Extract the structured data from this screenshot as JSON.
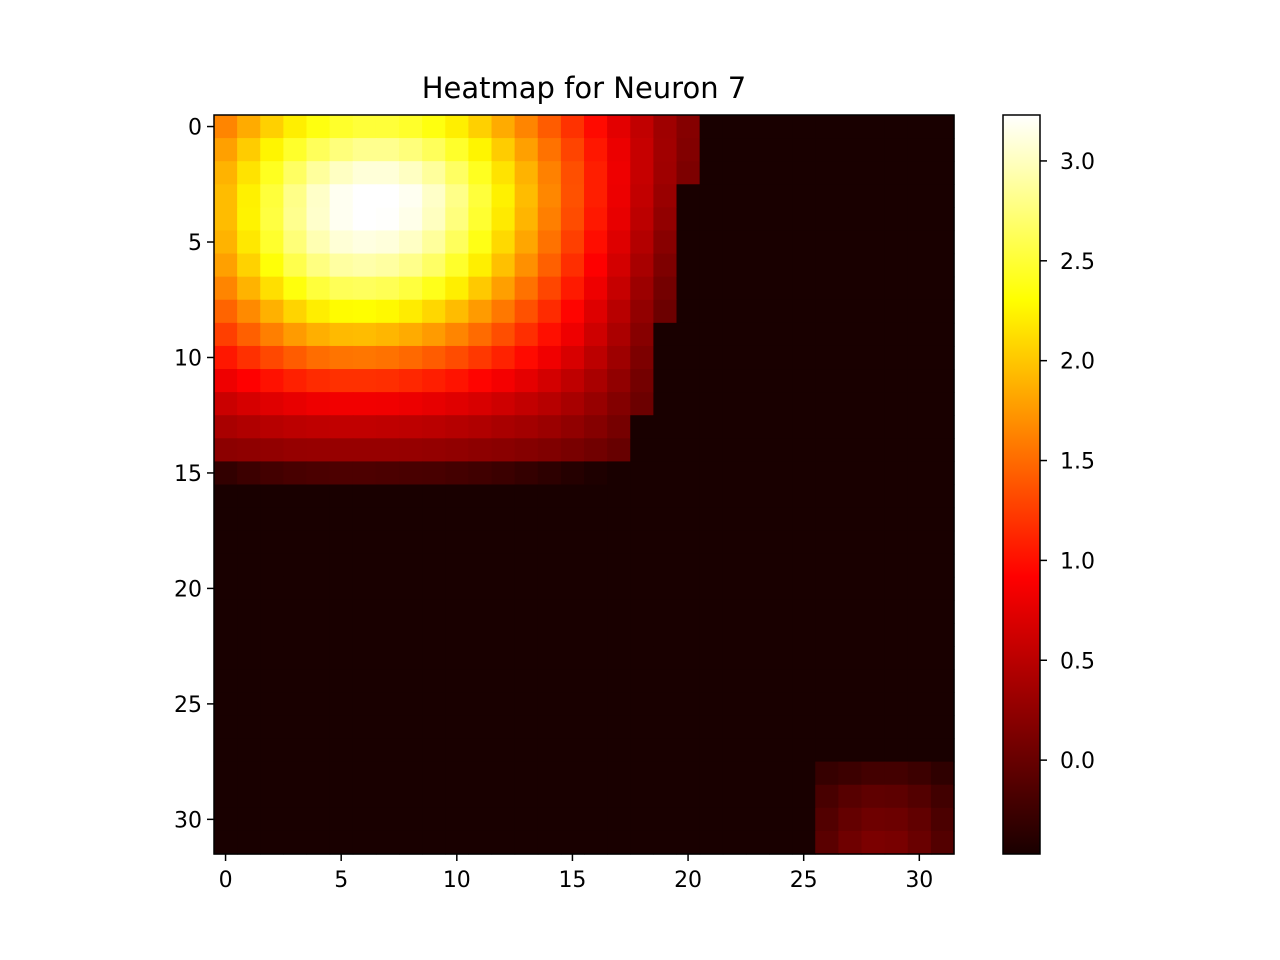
{
  "chart_data": {
    "type": "heatmap",
    "title": "Heatmap for Neuron 7",
    "xlabel": "",
    "ylabel": "",
    "rows": 32,
    "cols": 32,
    "x_ticks": [
      0,
      5,
      10,
      15,
      20,
      25,
      30
    ],
    "y_ticks": [
      0,
      5,
      10,
      15,
      20,
      25,
      30
    ],
    "y_axis_inverted": true,
    "grid": false,
    "colormap": "hot",
    "colorbar": {
      "vmin": -0.47,
      "vmax": 3.23,
      "ticks": [
        0.0,
        0.5,
        1.0,
        1.5,
        2.0,
        2.5,
        3.0
      ],
      "tick_labels": [
        "0.0",
        "0.5",
        "1.0",
        "1.5",
        "2.0",
        "2.5",
        "3.0"
      ],
      "placement": "right"
    },
    "values": [
      [
        1.64,
        1.85,
        2.05,
        2.22,
        2.36,
        2.46,
        2.51,
        2.51,
        2.46,
        2.36,
        2.22,
        2.05,
        1.85,
        1.64,
        1.42,
        1.19,
        0.97,
        0.75,
        0.54,
        0.34,
        0.18,
        -0.47,
        -0.47,
        -0.47,
        -0.47,
        -0.47,
        -0.47,
        -0.47,
        -0.47,
        -0.47,
        -0.47,
        -0.47
      ],
      [
        1.79,
        2.03,
        2.25,
        2.46,
        2.63,
        2.75,
        2.82,
        2.82,
        2.75,
        2.63,
        2.46,
        2.25,
        2.03,
        1.79,
        1.54,
        1.29,
        1.04,
        0.8,
        0.57,
        0.35,
        0.16,
        -0.47,
        -0.47,
        -0.47,
        -0.47,
        -0.47,
        -0.47,
        -0.47,
        -0.47,
        -0.47,
        -0.47,
        -0.47
      ],
      [
        1.89,
        2.15,
        2.42,
        2.66,
        2.87,
        3.01,
        3.09,
        3.09,
        3.01,
        2.87,
        2.66,
        2.42,
        2.15,
        1.89,
        1.62,
        1.35,
        1.08,
        0.82,
        0.57,
        0.34,
        0.13,
        -0.47,
        -0.47,
        -0.47,
        -0.47,
        -0.47,
        -0.47,
        -0.47,
        -0.47,
        -0.47,
        -0.47,
        -0.47
      ],
      [
        1.94,
        2.23,
        2.52,
        2.8,
        3.03,
        3.18,
        3.23,
        3.23,
        3.18,
        3.03,
        2.8,
        2.52,
        2.23,
        1.94,
        1.65,
        1.36,
        1.08,
        0.81,
        0.55,
        0.3,
        -0.47,
        -0.47,
        -0.47,
        -0.47,
        -0.47,
        -0.47,
        -0.47,
        -0.47,
        -0.47,
        -0.47,
        -0.47,
        -0.47
      ],
      [
        1.94,
        2.24,
        2.54,
        2.82,
        3.04,
        3.18,
        3.23,
        3.22,
        3.15,
        3.0,
        2.76,
        2.48,
        2.19,
        1.9,
        1.61,
        1.33,
        1.05,
        0.78,
        0.51,
        0.26,
        -0.47,
        -0.47,
        -0.47,
        -0.47,
        -0.47,
        -0.47,
        -0.47,
        -0.47,
        -0.47,
        -0.47,
        -0.47,
        -0.47
      ],
      [
        1.89,
        2.18,
        2.47,
        2.74,
        2.95,
        3.08,
        3.12,
        3.1,
        3.02,
        2.87,
        2.64,
        2.38,
        2.1,
        1.82,
        1.54,
        1.26,
        0.99,
        0.72,
        0.46,
        0.2,
        -0.47,
        -0.47,
        -0.47,
        -0.47,
        -0.47,
        -0.47,
        -0.47,
        -0.47,
        -0.47,
        -0.47,
        -0.47,
        -0.47
      ],
      [
        1.79,
        2.06,
        2.33,
        2.58,
        2.77,
        2.89,
        2.92,
        2.89,
        2.81,
        2.67,
        2.46,
        2.22,
        1.96,
        1.7,
        1.44,
        1.17,
        0.91,
        0.65,
        0.39,
        0.14,
        -0.47,
        -0.47,
        -0.47,
        -0.47,
        -0.47,
        -0.47,
        -0.47,
        -0.47,
        -0.47,
        -0.47,
        -0.47,
        -0.47
      ],
      [
        1.64,
        1.89,
        2.13,
        2.35,
        2.52,
        2.62,
        2.64,
        2.61,
        2.53,
        2.4,
        2.22,
        2.01,
        1.78,
        1.54,
        1.3,
        1.06,
        0.82,
        0.57,
        0.32,
        0.08,
        -0.47,
        -0.47,
        -0.47,
        -0.47,
        -0.47,
        -0.47,
        -0.47,
        -0.47,
        -0.47,
        -0.47,
        -0.47,
        -0.47
      ],
      [
        1.46,
        1.67,
        1.88,
        2.07,
        2.21,
        2.29,
        2.3,
        2.27,
        2.2,
        2.09,
        1.94,
        1.76,
        1.57,
        1.36,
        1.15,
        0.94,
        0.72,
        0.49,
        0.26,
        0.03,
        -0.47,
        -0.47,
        -0.47,
        -0.47,
        -0.47,
        -0.47,
        -0.47,
        -0.47,
        -0.47,
        -0.47,
        -0.47,
        -0.47
      ],
      [
        1.26,
        1.44,
        1.61,
        1.76,
        1.87,
        1.93,
        1.94,
        1.91,
        1.85,
        1.76,
        1.64,
        1.5,
        1.34,
        1.17,
        1.0,
        0.82,
        0.62,
        0.41,
        0.19,
        -0.47,
        -0.47,
        -0.47,
        -0.47,
        -0.47,
        -0.47,
        -0.47,
        -0.47,
        -0.47,
        -0.47,
        -0.47,
        -0.47,
        -0.47
      ],
      [
        1.04,
        1.18,
        1.31,
        1.42,
        1.51,
        1.55,
        1.56,
        1.54,
        1.49,
        1.42,
        1.33,
        1.22,
        1.1,
        0.97,
        0.83,
        0.68,
        0.51,
        0.33,
        0.13,
        -0.47,
        -0.47,
        -0.47,
        -0.47,
        -0.47,
        -0.47,
        -0.47,
        -0.47,
        -0.47,
        -0.47,
        -0.47,
        -0.47,
        -0.47
      ],
      [
        0.82,
        0.92,
        1.01,
        1.09,
        1.15,
        1.18,
        1.18,
        1.17,
        1.13,
        1.08,
        1.02,
        0.94,
        0.86,
        0.76,
        0.65,
        0.53,
        0.4,
        0.25,
        0.08,
        -0.47,
        -0.47,
        -0.47,
        -0.47,
        -0.47,
        -0.47,
        -0.47,
        -0.47,
        -0.47,
        -0.47,
        -0.47,
        -0.47,
        -0.47
      ],
      [
        0.6,
        0.67,
        0.73,
        0.78,
        0.82,
        0.84,
        0.84,
        0.83,
        0.81,
        0.77,
        0.73,
        0.68,
        0.62,
        0.55,
        0.48,
        0.39,
        0.29,
        0.17,
        0.03,
        -0.47,
        -0.47,
        -0.47,
        -0.47,
        -0.47,
        -0.47,
        -0.47,
        -0.47,
        -0.47,
        -0.47,
        -0.47,
        -0.47,
        -0.47
      ],
      [
        0.4,
        0.44,
        0.48,
        0.51,
        0.53,
        0.54,
        0.54,
        0.53,
        0.52,
        0.5,
        0.47,
        0.44,
        0.4,
        0.36,
        0.31,
        0.25,
        0.18,
        0.09,
        -0.47,
        -0.47,
        -0.47,
        -0.47,
        -0.47,
        -0.47,
        -0.47,
        -0.47,
        -0.47,
        -0.47,
        -0.47,
        -0.47,
        -0.47,
        -0.47
      ],
      [
        0.22,
        0.24,
        0.26,
        0.28,
        0.29,
        0.29,
        0.29,
        0.29,
        0.28,
        0.27,
        0.25,
        0.23,
        0.21,
        0.18,
        0.15,
        0.11,
        0.06,
        0.0,
        -0.47,
        -0.47,
        -0.47,
        -0.47,
        -0.47,
        -0.47,
        -0.47,
        -0.47,
        -0.47,
        -0.47,
        -0.47,
        -0.47,
        -0.47,
        -0.47
      ],
      [
        -0.32,
        -0.26,
        -0.22,
        -0.19,
        -0.17,
        -0.16,
        -0.16,
        -0.17,
        -0.18,
        -0.19,
        -0.21,
        -0.24,
        -0.27,
        -0.31,
        -0.35,
        -0.4,
        -0.44,
        -0.47,
        -0.47,
        -0.47,
        -0.47,
        -0.47,
        -0.47,
        -0.47,
        -0.47,
        -0.47,
        -0.47,
        -0.47,
        -0.47,
        -0.47,
        -0.47,
        -0.47
      ],
      [
        -0.47,
        -0.47,
        -0.47,
        -0.47,
        -0.47,
        -0.47,
        -0.47,
        -0.47,
        -0.47,
        -0.47,
        -0.47,
        -0.47,
        -0.47,
        -0.47,
        -0.47,
        -0.47,
        -0.47,
        -0.47,
        -0.47,
        -0.47,
        -0.47,
        -0.47,
        -0.47,
        -0.47,
        -0.47,
        -0.47,
        -0.47,
        -0.47,
        -0.47,
        -0.47,
        -0.47,
        -0.47
      ],
      [
        -0.47,
        -0.47,
        -0.47,
        -0.47,
        -0.47,
        -0.47,
        -0.47,
        -0.47,
        -0.47,
        -0.47,
        -0.47,
        -0.47,
        -0.47,
        -0.47,
        -0.47,
        -0.47,
        -0.47,
        -0.47,
        -0.47,
        -0.47,
        -0.47,
        -0.47,
        -0.47,
        -0.47,
        -0.47,
        -0.47,
        -0.47,
        -0.47,
        -0.47,
        -0.47,
        -0.47,
        -0.47
      ],
      [
        -0.47,
        -0.47,
        -0.47,
        -0.47,
        -0.47,
        -0.47,
        -0.47,
        -0.47,
        -0.47,
        -0.47,
        -0.47,
        -0.47,
        -0.47,
        -0.47,
        -0.47,
        -0.47,
        -0.47,
        -0.47,
        -0.47,
        -0.47,
        -0.47,
        -0.47,
        -0.47,
        -0.47,
        -0.47,
        -0.47,
        -0.47,
        -0.47,
        -0.47,
        -0.47,
        -0.47,
        -0.47
      ],
      [
        -0.47,
        -0.47,
        -0.47,
        -0.47,
        -0.47,
        -0.47,
        -0.47,
        -0.47,
        -0.47,
        -0.47,
        -0.47,
        -0.47,
        -0.47,
        -0.47,
        -0.47,
        -0.47,
        -0.47,
        -0.47,
        -0.47,
        -0.47,
        -0.47,
        -0.47,
        -0.47,
        -0.47,
        -0.47,
        -0.47,
        -0.47,
        -0.47,
        -0.47,
        -0.47,
        -0.47,
        -0.47
      ],
      [
        -0.47,
        -0.47,
        -0.47,
        -0.47,
        -0.47,
        -0.47,
        -0.47,
        -0.47,
        -0.47,
        -0.47,
        -0.47,
        -0.47,
        -0.47,
        -0.47,
        -0.47,
        -0.47,
        -0.47,
        -0.47,
        -0.47,
        -0.47,
        -0.47,
        -0.47,
        -0.47,
        -0.47,
        -0.47,
        -0.47,
        -0.47,
        -0.47,
        -0.47,
        -0.47,
        -0.47,
        -0.47
      ],
      [
        -0.47,
        -0.47,
        -0.47,
        -0.47,
        -0.47,
        -0.47,
        -0.47,
        -0.47,
        -0.47,
        -0.47,
        -0.47,
        -0.47,
        -0.47,
        -0.47,
        -0.47,
        -0.47,
        -0.47,
        -0.47,
        -0.47,
        -0.47,
        -0.47,
        -0.47,
        -0.47,
        -0.47,
        -0.47,
        -0.47,
        -0.47,
        -0.47,
        -0.47,
        -0.47,
        -0.47,
        -0.47
      ],
      [
        -0.47,
        -0.47,
        -0.47,
        -0.47,
        -0.47,
        -0.47,
        -0.47,
        -0.47,
        -0.47,
        -0.47,
        -0.47,
        -0.47,
        -0.47,
        -0.47,
        -0.47,
        -0.47,
        -0.47,
        -0.47,
        -0.47,
        -0.47,
        -0.47,
        -0.47,
        -0.47,
        -0.47,
        -0.47,
        -0.47,
        -0.47,
        -0.47,
        -0.47,
        -0.47,
        -0.47,
        -0.47
      ],
      [
        -0.47,
        -0.47,
        -0.47,
        -0.47,
        -0.47,
        -0.47,
        -0.47,
        -0.47,
        -0.47,
        -0.47,
        -0.47,
        -0.47,
        -0.47,
        -0.47,
        -0.47,
        -0.47,
        -0.47,
        -0.47,
        -0.47,
        -0.47,
        -0.47,
        -0.47,
        -0.47,
        -0.47,
        -0.47,
        -0.47,
        -0.47,
        -0.47,
        -0.47,
        -0.47,
        -0.47,
        -0.47
      ],
      [
        -0.47,
        -0.47,
        -0.47,
        -0.47,
        -0.47,
        -0.47,
        -0.47,
        -0.47,
        -0.47,
        -0.47,
        -0.47,
        -0.47,
        -0.47,
        -0.47,
        -0.47,
        -0.47,
        -0.47,
        -0.47,
        -0.47,
        -0.47,
        -0.47,
        -0.47,
        -0.47,
        -0.47,
        -0.47,
        -0.47,
        -0.47,
        -0.47,
        -0.47,
        -0.47,
        -0.47,
        -0.47
      ],
      [
        -0.47,
        -0.47,
        -0.47,
        -0.47,
        -0.47,
        -0.47,
        -0.47,
        -0.47,
        -0.47,
        -0.47,
        -0.47,
        -0.47,
        -0.47,
        -0.47,
        -0.47,
        -0.47,
        -0.47,
        -0.47,
        -0.47,
        -0.47,
        -0.47,
        -0.47,
        -0.47,
        -0.47,
        -0.47,
        -0.47,
        -0.47,
        -0.47,
        -0.47,
        -0.47,
        -0.47,
        -0.47
      ],
      [
        -0.47,
        -0.47,
        -0.47,
        -0.47,
        -0.47,
        -0.47,
        -0.47,
        -0.47,
        -0.47,
        -0.47,
        -0.47,
        -0.47,
        -0.47,
        -0.47,
        -0.47,
        -0.47,
        -0.47,
        -0.47,
        -0.47,
        -0.47,
        -0.47,
        -0.47,
        -0.47,
        -0.47,
        -0.47,
        -0.47,
        -0.47,
        -0.47,
        -0.47,
        -0.47,
        -0.47,
        -0.47
      ],
      [
        -0.47,
        -0.47,
        -0.47,
        -0.47,
        -0.47,
        -0.47,
        -0.47,
        -0.47,
        -0.47,
        -0.47,
        -0.47,
        -0.47,
        -0.47,
        -0.47,
        -0.47,
        -0.47,
        -0.47,
        -0.47,
        -0.47,
        -0.47,
        -0.47,
        -0.47,
        -0.47,
        -0.47,
        -0.47,
        -0.47,
        -0.47,
        -0.47,
        -0.47,
        -0.47,
        -0.47,
        -0.47
      ],
      [
        -0.47,
        -0.47,
        -0.47,
        -0.47,
        -0.47,
        -0.47,
        -0.47,
        -0.47,
        -0.47,
        -0.47,
        -0.47,
        -0.47,
        -0.47,
        -0.47,
        -0.47,
        -0.47,
        -0.47,
        -0.47,
        -0.47,
        -0.47,
        -0.47,
        -0.47,
        -0.47,
        -0.47,
        -0.47,
        -0.47,
        -0.3,
        -0.26,
        -0.22,
        -0.22,
        -0.26,
        -0.34
      ],
      [
        -0.47,
        -0.47,
        -0.47,
        -0.47,
        -0.47,
        -0.47,
        -0.47,
        -0.47,
        -0.47,
        -0.47,
        -0.47,
        -0.47,
        -0.47,
        -0.47,
        -0.47,
        -0.47,
        -0.47,
        -0.47,
        -0.47,
        -0.47,
        -0.47,
        -0.47,
        -0.47,
        -0.47,
        -0.47,
        -0.47,
        -0.19,
        -0.1,
        -0.05,
        -0.06,
        -0.12,
        -0.23
      ],
      [
        -0.47,
        -0.47,
        -0.47,
        -0.47,
        -0.47,
        -0.47,
        -0.47,
        -0.47,
        -0.47,
        -0.47,
        -0.47,
        -0.47,
        -0.47,
        -0.47,
        -0.47,
        -0.47,
        -0.47,
        -0.47,
        -0.47,
        -0.47,
        -0.47,
        -0.47,
        -0.47,
        -0.47,
        -0.47,
        -0.47,
        -0.13,
        -0.02,
        0.04,
        0.03,
        -0.04,
        -0.17
      ],
      [
        -0.47,
        -0.47,
        -0.47,
        -0.47,
        -0.47,
        -0.47,
        -0.47,
        -0.47,
        -0.47,
        -0.47,
        -0.47,
        -0.47,
        -0.47,
        -0.47,
        -0.47,
        -0.47,
        -0.47,
        -0.47,
        -0.47,
        -0.47,
        -0.47,
        -0.47,
        -0.47,
        -0.47,
        -0.47,
        -0.47,
        -0.08,
        0.05,
        0.12,
        0.1,
        0.01,
        -0.12
      ]
    ]
  }
}
